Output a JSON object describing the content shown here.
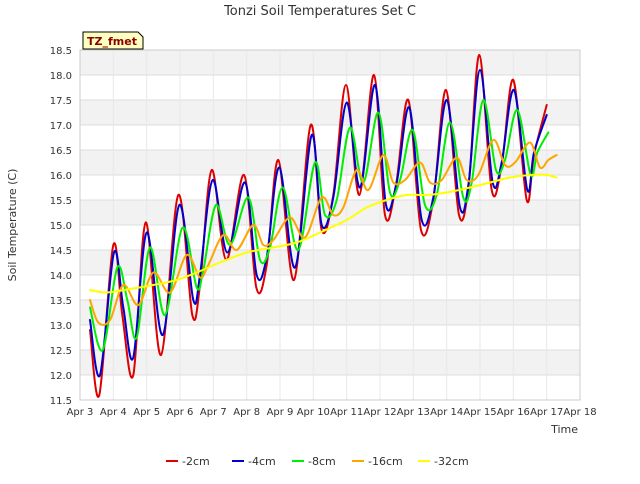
{
  "chart_data": {
    "type": "line",
    "title": "Tonzi Soil Temperatures Set C",
    "xlabel": "Time",
    "ylabel": "Soil Temperature (C)",
    "badge": "TZ_fmet",
    "xlim": [
      3,
      18
    ],
    "ylim": [
      11.5,
      18.5
    ],
    "x_ticks": [
      3,
      4,
      5,
      6,
      7,
      8,
      9,
      10,
      11,
      12,
      13,
      14,
      15,
      16,
      17,
      18
    ],
    "x_tick_labels": [
      "Apr 3",
      "Apr 4",
      "Apr 5",
      "Apr 6",
      "Apr 7",
      "Apr 8",
      "Apr 9",
      "Apr 10",
      "Apr 11",
      "Apr 12",
      "Apr 13",
      "Apr 14",
      "Apr 15",
      "Apr 16",
      "Apr 17",
      "Apr 18"
    ],
    "y_ticks": [
      11.5,
      12.0,
      12.5,
      13.0,
      13.5,
      14.0,
      14.5,
      15.0,
      15.5,
      16.0,
      16.5,
      17.0,
      17.5,
      18.0,
      18.5
    ],
    "y_tick_labels": [
      "11.5",
      "12.0",
      "12.5",
      "13.0",
      "13.5",
      "14.0",
      "14.5",
      "15.0",
      "15.5",
      "16.0",
      "16.5",
      "17.0",
      "17.5",
      "18.0",
      "18.5"
    ],
    "grid": true,
    "legend_position": "bottom",
    "series": [
      {
        "name": "-2cm",
        "color": "#dd0000",
        "x": [
          3.3,
          3.58,
          4.0,
          4.27,
          4.6,
          4.97,
          5.43,
          5.95,
          6.37,
          6.6,
          6.95,
          7.39,
          7.92,
          8.29,
          8.6,
          8.95,
          9.42,
          9.92,
          10.25,
          10.6,
          10.98,
          11.38,
          11.82,
          12.15,
          12.48,
          12.85,
          13.23,
          13.6,
          13.98,
          14.37,
          14.66,
          14.98,
          15.35,
          15.65,
          16.0,
          16.4,
          16.62,
          17.0
        ],
        "y": [
          12.9,
          11.6,
          14.6,
          13.2,
          12.0,
          15.05,
          12.4,
          15.6,
          13.2,
          13.8,
          16.1,
          14.3,
          16.0,
          13.75,
          14.2,
          16.3,
          13.9,
          17.0,
          14.9,
          15.6,
          17.8,
          15.6,
          18.0,
          15.2,
          15.8,
          17.5,
          14.9,
          15.5,
          17.7,
          15.2,
          15.8,
          18.4,
          15.7,
          16.2,
          17.9,
          15.5,
          16.4,
          17.4
        ]
      },
      {
        "name": "-4cm",
        "color": "#0000cc",
        "x": [
          3.3,
          3.6,
          4.02,
          4.3,
          4.6,
          5.0,
          5.48,
          5.98,
          6.4,
          6.6,
          6.98,
          7.42,
          7.95,
          8.3,
          8.6,
          8.98,
          9.45,
          9.95,
          10.25,
          10.6,
          11.0,
          11.4,
          11.85,
          12.18,
          12.5,
          12.88,
          13.25,
          13.6,
          14.0,
          14.4,
          14.66,
          15.0,
          15.38,
          15.65,
          16.02,
          16.42,
          16.62,
          17.0
        ],
        "y": [
          13.1,
          12.0,
          14.45,
          13.35,
          12.35,
          14.85,
          12.8,
          15.4,
          13.5,
          14.0,
          15.9,
          14.45,
          15.85,
          14.0,
          14.35,
          16.15,
          14.15,
          16.8,
          15.0,
          15.55,
          17.45,
          15.75,
          17.8,
          15.4,
          15.85,
          17.35,
          15.1,
          15.55,
          17.5,
          15.35,
          15.85,
          18.1,
          15.85,
          16.25,
          17.7,
          15.7,
          16.45,
          17.2
        ]
      },
      {
        "name": "-8cm",
        "color": "#00ee00",
        "x": [
          3.3,
          3.68,
          4.12,
          4.42,
          4.7,
          5.1,
          5.55,
          6.08,
          6.5,
          6.7,
          7.08,
          7.5,
          8.05,
          8.4,
          8.7,
          9.08,
          9.55,
          10.05,
          10.35,
          10.7,
          11.1,
          11.5,
          11.95,
          12.3,
          12.6,
          12.98,
          13.35,
          13.7,
          14.1,
          14.5,
          14.75,
          15.1,
          15.48,
          15.75,
          16.12,
          16.52,
          16.72,
          17.05
        ],
        "y": [
          13.35,
          12.5,
          14.15,
          13.5,
          12.75,
          14.55,
          13.2,
          14.95,
          13.75,
          14.1,
          15.4,
          14.6,
          15.55,
          14.3,
          14.55,
          15.75,
          14.5,
          16.25,
          15.2,
          15.5,
          16.95,
          15.85,
          17.25,
          15.65,
          15.9,
          16.9,
          15.4,
          15.6,
          17.05,
          15.55,
          15.85,
          17.5,
          16.1,
          16.3,
          17.3,
          16.0,
          16.45,
          16.85
        ]
      },
      {
        "name": "-16cm",
        "color": "#ffa500",
        "x": [
          3.3,
          3.55,
          3.9,
          4.3,
          4.75,
          5.2,
          5.7,
          6.2,
          6.6,
          6.85,
          7.3,
          7.7,
          8.2,
          8.5,
          8.8,
          9.3,
          9.75,
          10.25,
          10.6,
          10.9,
          11.3,
          11.65,
          12.1,
          12.4,
          12.75,
          13.2,
          13.5,
          13.85,
          14.3,
          14.6,
          14.95,
          15.4,
          15.75,
          16.05,
          16.5,
          16.8,
          17.05,
          17.3
        ],
        "y": [
          13.5,
          13.05,
          13.1,
          13.8,
          13.4,
          14.05,
          13.65,
          14.4,
          13.95,
          14.2,
          14.8,
          14.5,
          15.0,
          14.6,
          14.7,
          15.15,
          14.75,
          15.55,
          15.2,
          15.35,
          16.1,
          15.7,
          16.4,
          15.85,
          15.9,
          16.25,
          15.85,
          15.9,
          16.35,
          15.9,
          16.0,
          16.7,
          16.2,
          16.25,
          16.65,
          16.15,
          16.3,
          16.4
        ]
      },
      {
        "name": "-32cm",
        "color": "#ffff00",
        "x": [
          3.3,
          3.8,
          4.5,
          5.2,
          5.9,
          6.5,
          7.2,
          8.0,
          8.8,
          9.5,
          10.2,
          11.0,
          11.6,
          12.2,
          12.8,
          13.4,
          14.0,
          14.7,
          15.3,
          15.9,
          16.5,
          17.0,
          17.3
        ],
        "y": [
          13.7,
          13.65,
          13.72,
          13.8,
          13.9,
          14.05,
          14.25,
          14.45,
          14.55,
          14.65,
          14.85,
          15.1,
          15.35,
          15.5,
          15.6,
          15.6,
          15.65,
          15.75,
          15.85,
          15.95,
          16.0,
          16.0,
          15.95
        ]
      }
    ]
  }
}
